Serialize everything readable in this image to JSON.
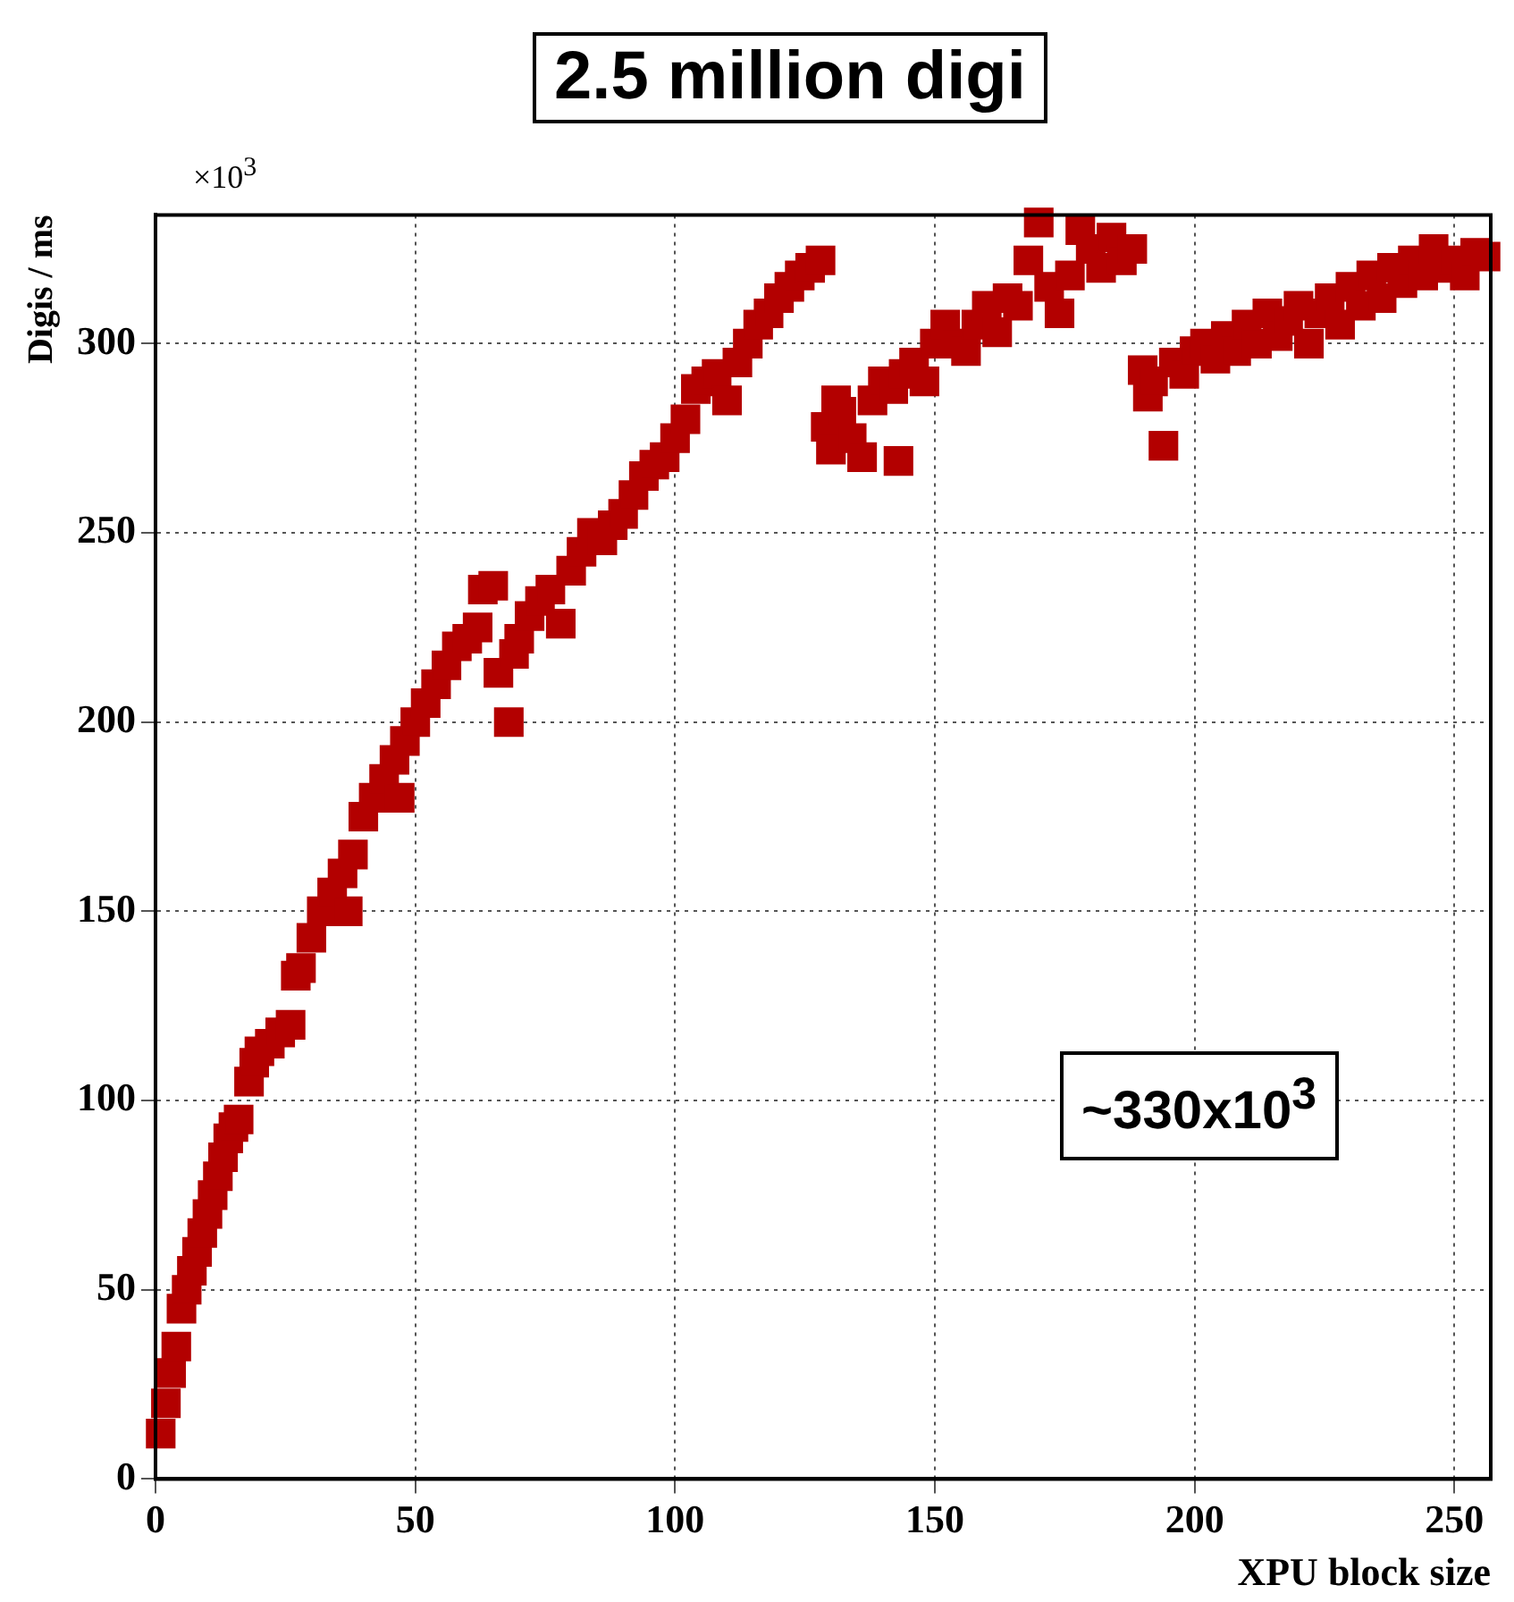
{
  "chart_data": {
    "type": "scatter",
    "title": "2.5 million digi",
    "xlabel": "XPU block size",
    "ylabel": "Digis / ms",
    "annotations": [
      "×10$^{3}$",
      "~330x10$^{3}$"
    ],
    "xlim": [
      0,
      257
    ],
    "xticks": [
      0,
      50,
      100,
      150,
      200,
      250
    ],
    "ylim": [
      0,
      334
    ],
    "yticks": [
      0,
      50,
      100,
      150,
      200,
      250,
      300
    ],
    "grid": true,
    "marker": "square",
    "legend": false,
    "series": [
      {
        "color": "#b30000",
        "x": [
          1,
          2,
          3,
          4,
          5,
          6,
          7,
          8,
          9,
          10,
          11,
          12,
          13,
          14,
          15,
          16,
          18,
          19,
          20,
          22,
          24,
          26,
          27,
          28,
          30,
          32,
          34,
          36,
          37,
          38,
          40,
          42,
          44,
          46,
          47,
          48,
          50,
          52,
          54,
          56,
          58,
          60,
          62,
          63,
          65,
          66,
          68,
          69,
          70,
          72,
          74,
          76,
          78,
          80,
          82,
          84,
          86,
          88,
          90,
          92,
          94,
          96,
          98,
          100,
          102,
          104,
          106,
          108,
          110,
          112,
          114,
          116,
          118,
          120,
          122,
          124,
          126,
          128,
          129,
          130,
          131,
          132,
          134,
          136,
          138,
          140,
          142,
          143,
          144,
          146,
          148,
          150,
          152,
          154,
          156,
          158,
          160,
          162,
          164,
          166,
          168,
          170,
          172,
          174,
          176,
          178,
          180,
          182,
          184,
          186,
          188,
          190,
          191,
          192,
          194,
          196,
          198,
          200,
          202,
          204,
          206,
          208,
          210,
          212,
          214,
          216,
          218,
          220,
          222,
          224,
          226,
          228,
          230,
          232,
          234,
          236,
          238,
          240,
          242,
          244,
          246,
          248,
          250,
          252,
          254,
          256
        ],
        "values": [
          12,
          20,
          28,
          35,
          45,
          50,
          55,
          60,
          65,
          70,
          75,
          80,
          85,
          90,
          93,
          95,
          105,
          110,
          113,
          115,
          118,
          120,
          133,
          135,
          143,
          150,
          155,
          160,
          150,
          165,
          175,
          180,
          185,
          190,
          180,
          195,
          200,
          205,
          210,
          215,
          220,
          222,
          225,
          235,
          236,
          213,
          200,
          218,
          222,
          228,
          232,
          235,
          226,
          240,
          245,
          250,
          248,
          252,
          255,
          260,
          265,
          268,
          270,
          275,
          280,
          288,
          290,
          292,
          285,
          295,
          300,
          305,
          308,
          312,
          315,
          318,
          320,
          322,
          278,
          272,
          285,
          282,
          275,
          270,
          285,
          290,
          288,
          269,
          292,
          295,
          290,
          300,
          305,
          300,
          298,
          305,
          310,
          303,
          312,
          310,
          322,
          332,
          315,
          308,
          318,
          330,
          325,
          320,
          328,
          322,
          325,
          293,
          286,
          290,
          273,
          295,
          292,
          298,
          300,
          296,
          302,
          298,
          305,
          300,
          308,
          302,
          306,
          310,
          300,
          308,
          312,
          305,
          315,
          310,
          318,
          312,
          320,
          316,
          322,
          318,
          325,
          320,
          322,
          318,
          324,
          323
        ]
      }
    ]
  }
}
